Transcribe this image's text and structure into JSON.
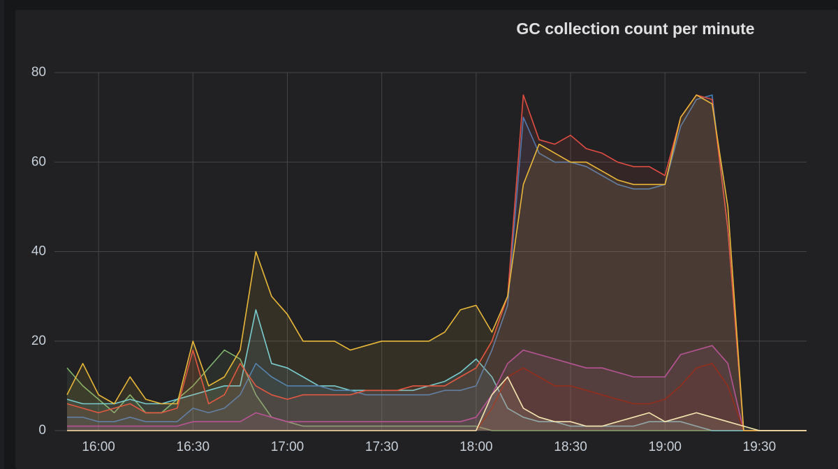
{
  "chart_data": {
    "type": "line",
    "title": "GC collection count per minute",
    "x": [
      "15:50",
      "15:55",
      "16:00",
      "16:05",
      "16:10",
      "16:15",
      "16:20",
      "16:25",
      "16:30",
      "16:35",
      "16:40",
      "16:45",
      "16:50",
      "16:55",
      "17:00",
      "17:05",
      "17:10",
      "17:15",
      "17:20",
      "17:25",
      "17:30",
      "17:35",
      "17:40",
      "17:45",
      "17:50",
      "17:55",
      "18:00",
      "18:05",
      "18:10",
      "18:15",
      "18:20",
      "18:25",
      "18:30",
      "18:35",
      "18:40",
      "18:45",
      "18:50",
      "18:55",
      "19:00",
      "19:05",
      "19:10",
      "19:15",
      "19:20",
      "19:25",
      "19:30",
      "19:35",
      "19:40",
      "19:45"
    ],
    "xlim": [
      "15:46",
      "19:45"
    ],
    "xticks": [
      "16:00",
      "16:30",
      "17:00",
      "17:30",
      "18:00",
      "18:30",
      "19:00",
      "19:30"
    ],
    "ylim": [
      0,
      80
    ],
    "yticks": [
      0,
      20,
      40,
      60,
      80
    ],
    "grid": true,
    "fill_area": true,
    "series": [
      {
        "color": "#7eb26d",
        "values": [
          14,
          10,
          7,
          4,
          8,
          4,
          4,
          7,
          10,
          14,
          18,
          16,
          8,
          3,
          2,
          1,
          1,
          1,
          1,
          1,
          1,
          1,
          1,
          1,
          1,
          1,
          1,
          0,
          0,
          0,
          0,
          0,
          0,
          0,
          0,
          0,
          0,
          0,
          0,
          0,
          0,
          0,
          0,
          0,
          0,
          0,
          0,
          0
        ]
      },
      {
        "color": "#6ed0e0",
        "values": [
          7,
          6,
          6,
          6,
          7,
          6,
          6,
          7,
          8,
          9,
          10,
          10,
          27,
          15,
          14,
          12,
          10,
          10,
          9,
          9,
          9,
          9,
          9,
          10,
          11,
          13,
          16,
          12,
          5,
          3,
          2,
          2,
          1,
          1,
          1,
          1,
          1,
          2,
          2,
          2,
          1,
          0,
          0,
          0,
          0,
          0,
          0,
          0
        ]
      },
      {
        "color": "#ba43a9",
        "values": [
          1,
          1,
          1,
          1,
          1,
          1,
          1,
          1,
          2,
          2,
          2,
          2,
          4,
          3,
          2,
          2,
          2,
          2,
          2,
          2,
          2,
          2,
          2,
          2,
          2,
          2,
          3,
          8,
          15,
          18,
          17,
          16,
          15,
          14,
          14,
          13,
          12,
          12,
          12,
          17,
          18,
          19,
          15,
          0,
          0,
          0,
          0,
          0
        ]
      },
      {
        "color": "#890f02",
        "values": [
          0,
          0,
          0,
          0,
          0,
          0,
          0,
          0,
          0,
          0,
          0,
          0,
          0,
          0,
          0,
          0,
          0,
          0,
          0,
          0,
          0,
          0,
          0,
          0,
          0,
          0,
          0,
          5,
          12,
          14,
          12,
          10,
          10,
          9,
          8,
          7,
          6,
          6,
          7,
          10,
          14,
          15,
          10,
          0,
          0,
          0,
          0,
          0
        ]
      },
      {
        "color": "#447ebc",
        "values": [
          3,
          3,
          2,
          2,
          3,
          2,
          2,
          2,
          5,
          4,
          5,
          8,
          15,
          12,
          10,
          10,
          10,
          9,
          9,
          8,
          8,
          8,
          8,
          8,
          9,
          9,
          10,
          18,
          28,
          70,
          62,
          60,
          60,
          59,
          57,
          55,
          54,
          54,
          55,
          68,
          74,
          75,
          45,
          0,
          0,
          0,
          0,
          0
        ]
      },
      {
        "color": "#e24d42",
        "values": [
          6,
          5,
          4,
          5,
          6,
          4,
          4,
          5,
          18,
          6,
          8,
          15,
          10,
          8,
          7,
          8,
          8,
          8,
          8,
          9,
          9,
          9,
          10,
          10,
          10,
          12,
          14,
          20,
          30,
          75,
          65,
          64,
          66,
          63,
          62,
          60,
          59,
          59,
          57,
          70,
          75,
          74,
          45,
          0,
          0,
          0,
          0,
          0
        ]
      },
      {
        "color": "#eab839",
        "values": [
          8,
          15,
          8,
          6,
          12,
          7,
          6,
          6,
          20,
          10,
          12,
          18,
          40,
          30,
          26,
          20,
          20,
          20,
          18,
          19,
          20,
          20,
          20,
          20,
          22,
          27,
          28,
          22,
          30,
          55,
          64,
          62,
          60,
          60,
          58,
          56,
          55,
          55,
          55,
          70,
          75,
          73,
          50,
          0,
          0,
          0,
          0,
          0
        ]
      },
      {
        "color": "#f4e6b0",
        "values": [
          0,
          0,
          0,
          0,
          0,
          0,
          0,
          0,
          0,
          0,
          0,
          0,
          0,
          0,
          0,
          0,
          0,
          0,
          0,
          0,
          0,
          0,
          0,
          0,
          0,
          0,
          0,
          8,
          12,
          5,
          3,
          2,
          2,
          1,
          1,
          2,
          3,
          4,
          2,
          3,
          4,
          3,
          2,
          1,
          0,
          0,
          0,
          0
        ]
      }
    ]
  }
}
